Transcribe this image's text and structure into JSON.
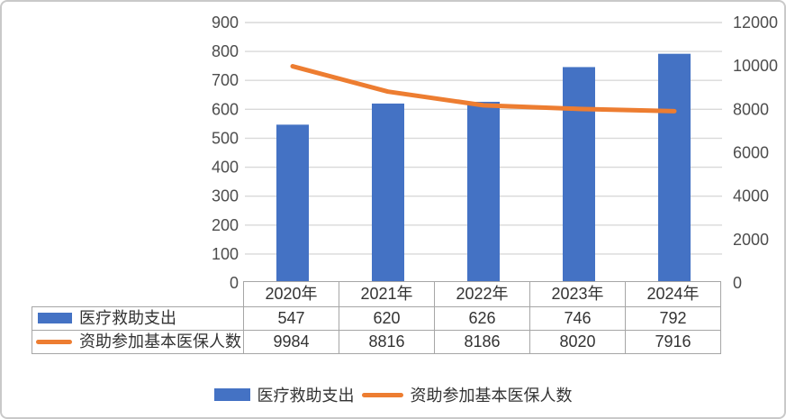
{
  "chart_data": {
    "type": "combo",
    "categories": [
      "2020年",
      "2021年",
      "2022年",
      "2023年",
      "2024年"
    ],
    "series": [
      {
        "name": "医疗救助支出",
        "type": "bar",
        "axis": "left",
        "color": "#4472C4",
        "values": [
          547,
          620,
          626,
          746,
          792
        ]
      },
      {
        "name": "资助参加基本医保人数",
        "type": "line",
        "axis": "right",
        "color": "#ED7D31",
        "values": [
          9984,
          8816,
          8186,
          8020,
          7916
        ]
      }
    ],
    "left_axis": {
      "min": 0,
      "max": 900,
      "step": 100,
      "ticks": [
        0,
        100,
        200,
        300,
        400,
        500,
        600,
        700,
        800,
        900
      ]
    },
    "right_axis": {
      "min": 0,
      "max": 12000,
      "step": 2000,
      "ticks": [
        0,
        2000,
        4000,
        6000,
        8000,
        10000,
        12000
      ]
    },
    "grid": true,
    "legend_position": "bottom",
    "title": ""
  },
  "colors": {
    "bar": "#4472C4",
    "line": "#ED7D31",
    "grid": "#d9d9d9",
    "axis_text": "#4d4d4d",
    "table_border": "#a6a6a6",
    "table_text": "#333333",
    "card_border": "#c9c9c9"
  }
}
